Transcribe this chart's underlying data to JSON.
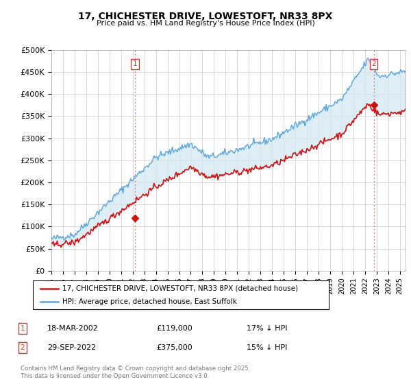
{
  "title": "17, CHICHESTER DRIVE, LOWESTOFT, NR33 8PX",
  "subtitle": "Price paid vs. HM Land Registry's House Price Index (HPI)",
  "ylabel_ticks": [
    "£0",
    "£50K",
    "£100K",
    "£150K",
    "£200K",
    "£250K",
    "£300K",
    "£350K",
    "£400K",
    "£450K",
    "£500K"
  ],
  "ytick_values": [
    0,
    50000,
    100000,
    150000,
    200000,
    250000,
    300000,
    350000,
    400000,
    450000,
    500000
  ],
  "ylim": [
    0,
    500000
  ],
  "xlim_start": 1995.0,
  "xlim_end": 2025.5,
  "hpi_color": "#5ba3d9",
  "price_color": "#cc1111",
  "fill_color": "#d0e8f5",
  "vline_color": "#dd3333",
  "marker1_x": 2002.21,
  "marker1_y": 119000,
  "marker2_x": 2022.75,
  "marker2_y": 375000,
  "legend_entry1": "17, CHICHESTER DRIVE, LOWESTOFT, NR33 8PX (detached house)",
  "legend_entry2": "HPI: Average price, detached house, East Suffolk",
  "annotation1_date": "18-MAR-2002",
  "annotation1_price": "£119,000",
  "annotation1_hpi": "17% ↓ HPI",
  "annotation2_date": "29-SEP-2022",
  "annotation2_price": "£375,000",
  "annotation2_hpi": "15% ↓ HPI",
  "footer": "Contains HM Land Registry data © Crown copyright and database right 2025.\nThis data is licensed under the Open Government Licence v3.0.",
  "background_color": "#ffffff",
  "grid_color": "#c8c8c8"
}
